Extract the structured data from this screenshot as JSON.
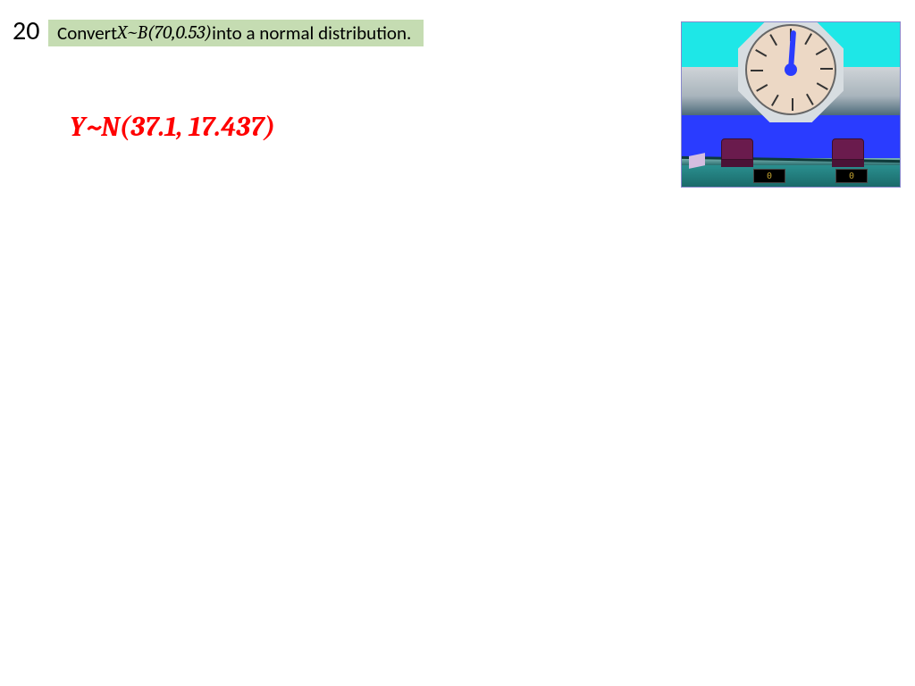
{
  "question_number": "20",
  "question": {
    "prefix": "Convert ",
    "expr_var": "X",
    "expr_tilde": " ~ ",
    "expr_dist": "B",
    "expr_args": "(70,0.53)",
    "suffix": " into a normal distribution."
  },
  "answer": {
    "var": "Y",
    "tilde": "~",
    "dist": "N",
    "args": "(37.1, 17.437)",
    "color": "#ff0000"
  },
  "question_bar_bg": "#c5dcb2",
  "widget": {
    "score_left": "0",
    "score_right": "0",
    "clock_hand_angle_deg": 4,
    "colors": {
      "sky": "#1ee7e7",
      "wall": "#2a3cff",
      "face": "#ecd8c5",
      "chair": "#6a1b4d",
      "desk": "#2a8f8f",
      "score_text": "#c0a030"
    }
  }
}
